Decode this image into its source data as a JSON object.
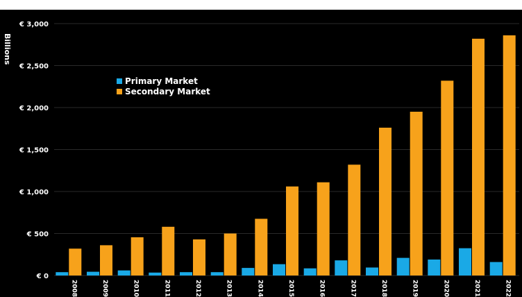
{
  "chart_data": {
    "type": "bar",
    "ylabel": "Billions",
    "xlabel": "",
    "ylim": [
      0,
      3000
    ],
    "y_ticks": [
      "€ 0",
      "€ 500",
      "€ 1,000",
      "€ 1,500",
      "€ 2,000",
      "€ 2,500",
      "€ 3,000"
    ],
    "y_tick_values": [
      0,
      500,
      1000,
      1500,
      2000,
      2500,
      3000
    ],
    "categories": [
      "2008",
      "2009",
      "2010",
      "2011",
      "2012",
      "2013",
      "2014",
      "2015",
      "2016",
      "2017",
      "2018",
      "2019",
      "2020",
      "2021",
      "2022"
    ],
    "series": [
      {
        "name": "Primary Market",
        "color": "#1aa9e6",
        "values": [
          40,
          45,
          60,
          35,
          40,
          40,
          90,
          135,
          85,
          180,
          95,
          210,
          190,
          325,
          160
        ]
      },
      {
        "name": "Secondary Market",
        "color": "#f7a21b",
        "values": [
          320,
          360,
          455,
          580,
          430,
          500,
          675,
          1060,
          1110,
          1320,
          1760,
          1950,
          2320,
          2820,
          2860
        ]
      }
    ],
    "legend_position": "upper-left",
    "grid": true,
    "background": "#000000"
  }
}
